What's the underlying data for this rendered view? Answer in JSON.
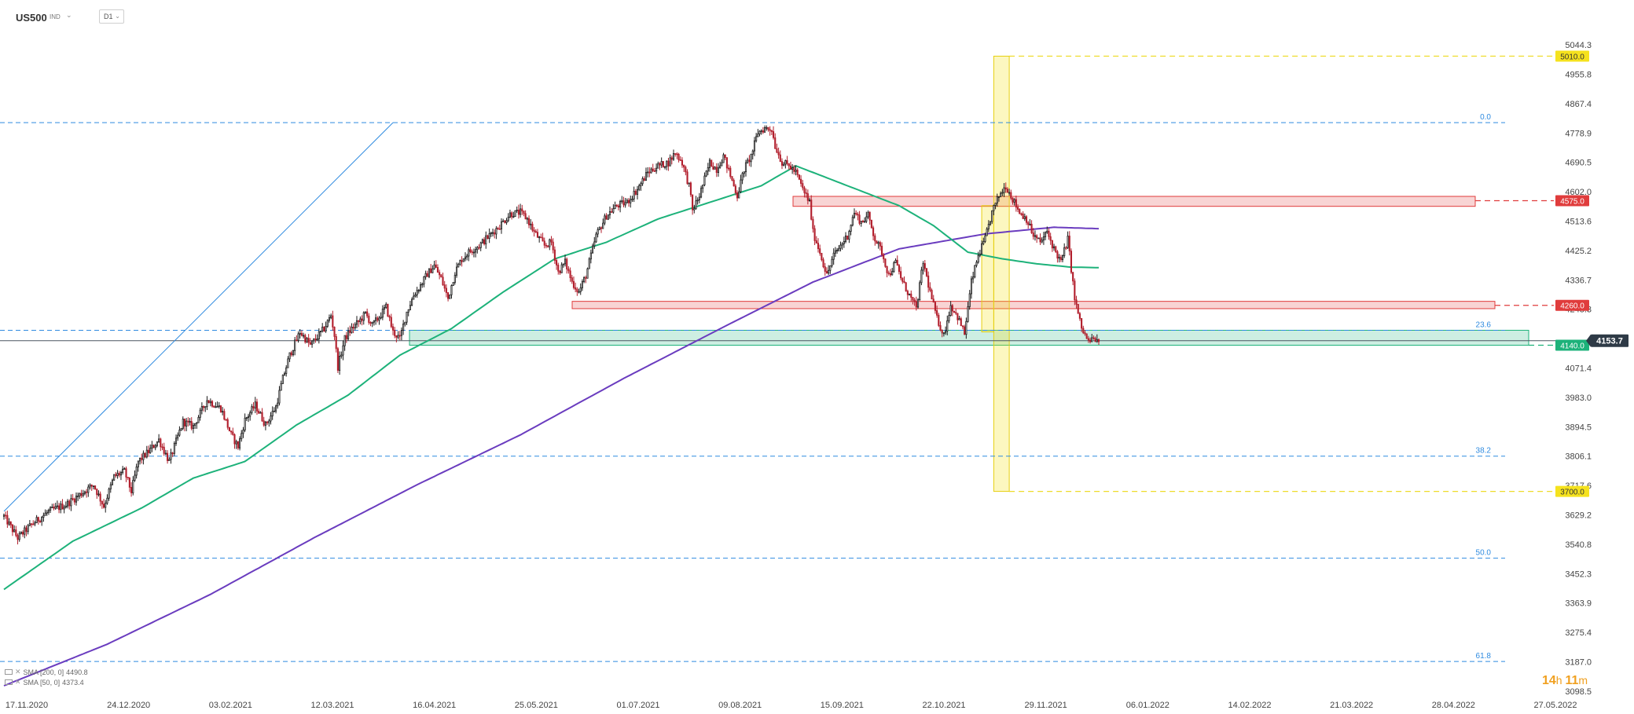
{
  "header": {
    "symbol": "US500",
    "instrument_type": "IND",
    "timeframe": "D1"
  },
  "timer": {
    "hours": "14",
    "h_unit": "h",
    "minutes": "11",
    "m_unit": "m"
  },
  "indicators": [
    {
      "label": "SMA [200, 0]",
      "value": "4490.8",
      "color": "#6a3cbf"
    },
    {
      "label": "SMA [50, 0]",
      "value": "4373.4",
      "color": "#1db27a"
    }
  ],
  "chart_data": {
    "type": "candlestick",
    "symbol": "US500",
    "timeframe": "D1",
    "y_ticks": [
      5044.3,
      4955.8,
      4867.4,
      4778.9,
      4690.5,
      4602.0,
      4513.6,
      4425.2,
      4336.7,
      4248.3,
      4071.4,
      3983.0,
      3894.5,
      3806.1,
      3717.6,
      3629.2,
      3540.8,
      3452.3,
      3363.9,
      3275.4,
      3187.0,
      3098.5
    ],
    "ylim": [
      3098.5,
      5044.3
    ],
    "x_ticks": [
      "17.11.2020",
      "24.12.2020",
      "03.02.2021",
      "12.03.2021",
      "16.04.2021",
      "25.05.2021",
      "01.07.2021",
      "09.08.2021",
      "15.09.2021",
      "22.10.2021",
      "29.11.2021",
      "06.01.2022",
      "14.02.2022",
      "21.03.2022",
      "28.04.2022",
      "27.05.2022"
    ],
    "current_price": "4153.7",
    "price_levels": [
      {
        "label": "5010.0",
        "value": 5010.0,
        "color": "#f5e21e",
        "text_color": "#333333"
      },
      {
        "label": "4575.0",
        "value": 4575.0,
        "color": "#e03c3c",
        "text_color": "#ffffff"
      },
      {
        "label": "4260.0",
        "value": 4260.0,
        "color": "#e03c3c",
        "text_color": "#ffffff"
      },
      {
        "label": "4140.0",
        "value": 4140.0,
        "color": "#1db27a",
        "text_color": "#ffffff"
      },
      {
        "label": "3700.0",
        "value": 3700.0,
        "color": "#f5e21e",
        "text_color": "#333333"
      }
    ],
    "fibonacci_levels": [
      {
        "label": "0.0",
        "value": 4810.0
      },
      {
        "label": "23.6",
        "value": 4185.0
      },
      {
        "label": "38.2",
        "value": 3806.1
      },
      {
        "label": "50.0",
        "value": 3499.0
      },
      {
        "label": "61.8",
        "value": 3188.0
      }
    ],
    "zones": [
      {
        "name": "resistance-zone-4575",
        "x_start": "08.2021",
        "x_end": "04.2022",
        "y_low": 4558,
        "y_high": 4588,
        "color": "#e03c3c"
      },
      {
        "name": "resistance-zone-4260",
        "x_start": "06.2021",
        "x_end": "05.2022",
        "y_low": 4250,
        "y_high": 4272,
        "color": "#e03c3c"
      },
      {
        "name": "support-zone-4140",
        "x_start": "04.2021",
        "x_end": "05.2022",
        "y_low": 4140,
        "y_high": 4185,
        "color": "#1db27a"
      }
    ],
    "price_path": [
      [
        0,
        3625
      ],
      [
        8,
        3560
      ],
      [
        16,
        3600
      ],
      [
        26,
        3640
      ],
      [
        36,
        3660
      ],
      [
        44,
        3690
      ],
      [
        52,
        3720
      ],
      [
        58,
        3655
      ],
      [
        64,
        3745
      ],
      [
        70,
        3760
      ],
      [
        74,
        3700
      ],
      [
        78,
        3790
      ],
      [
        84,
        3820
      ],
      [
        90,
        3855
      ],
      [
        96,
        3790
      ],
      [
        104,
        3910
      ],
      [
        110,
        3895
      ],
      [
        118,
        3975
      ],
      [
        126,
        3950
      ],
      [
        132,
        3870
      ],
      [
        136,
        3835
      ],
      [
        140,
        3915
      ],
      [
        146,
        3960
      ],
      [
        152,
        3900
      ],
      [
        158,
        3955
      ],
      [
        162,
        4040
      ],
      [
        166,
        4110
      ],
      [
        172,
        4180
      ],
      [
        178,
        4140
      ],
      [
        182,
        4165
      ],
      [
        186,
        4190
      ],
      [
        190,
        4230
      ],
      [
        192,
        4170
      ],
      [
        194,
        4075
      ],
      [
        198,
        4160
      ],
      [
        202,
        4190
      ],
      [
        206,
        4210
      ],
      [
        210,
        4235
      ],
      [
        214,
        4200
      ],
      [
        218,
        4225
      ],
      [
        222,
        4255
      ],
      [
        226,
        4180
      ],
      [
        230,
        4160
      ],
      [
        234,
        4240
      ],
      [
        238,
        4290
      ],
      [
        242,
        4320
      ],
      [
        246,
        4355
      ],
      [
        250,
        4380
      ],
      [
        254,
        4340
      ],
      [
        258,
        4280
      ],
      [
        262,
        4360
      ],
      [
        266,
        4400
      ],
      [
        270,
        4420
      ],
      [
        276,
        4440
      ],
      [
        282,
        4470
      ],
      [
        288,
        4500
      ],
      [
        294,
        4535
      ],
      [
        300,
        4540
      ],
      [
        304,
        4520
      ],
      [
        308,
        4480
      ],
      [
        314,
        4440
      ],
      [
        318,
        4450
      ],
      [
        322,
        4360
      ],
      [
        326,
        4390
      ],
      [
        330,
        4330
      ],
      [
        334,
        4300
      ],
      [
        338,
        4350
      ],
      [
        344,
        4470
      ],
      [
        350,
        4530
      ],
      [
        356,
        4560
      ],
      [
        362,
        4570
      ],
      [
        368,
        4610
      ],
      [
        374,
        4660
      ],
      [
        380,
        4680
      ],
      [
        386,
        4690
      ],
      [
        390,
        4720
      ],
      [
        394,
        4690
      ],
      [
        398,
        4620
      ],
      [
        400,
        4545
      ],
      [
        404,
        4590
      ],
      [
        410,
        4690
      ],
      [
        414,
        4670
      ],
      [
        418,
        4710
      ],
      [
        422,
        4650
      ],
      [
        426,
        4590
      ],
      [
        430,
        4670
      ],
      [
        434,
        4710
      ],
      [
        438,
        4780
      ],
      [
        442,
        4793
      ],
      [
        446,
        4790
      ],
      [
        448,
        4740
      ],
      [
        452,
        4690
      ],
      [
        456,
        4680
      ],
      [
        460,
        4660
      ],
      [
        464,
        4610
      ],
      [
        468,
        4570
      ],
      [
        470,
        4480
      ],
      [
        474,
        4420
      ],
      [
        478,
        4350
      ],
      [
        482,
        4410
      ],
      [
        486,
        4440
      ],
      [
        490,
        4470
      ],
      [
        494,
        4540
      ],
      [
        498,
        4510
      ],
      [
        502,
        4530
      ],
      [
        506,
        4460
      ],
      [
        510,
        4420
      ],
      [
        514,
        4350
      ],
      [
        518,
        4390
      ],
      [
        522,
        4330
      ],
      [
        526,
        4290
      ],
      [
        530,
        4250
      ],
      [
        534,
        4390
      ],
      [
        538,
        4300
      ],
      [
        542,
        4220
      ],
      [
        546,
        4170
      ],
      [
        550,
        4260
      ],
      [
        554,
        4225
      ],
      [
        558,
        4175
      ],
      [
        562,
        4330
      ],
      [
        566,
        4410
      ],
      [
        570,
        4460
      ],
      [
        574,
        4540
      ],
      [
        578,
        4590
      ],
      [
        582,
        4620
      ],
      [
        586,
        4580
      ],
      [
        590,
        4540
      ],
      [
        594,
        4520
      ],
      [
        598,
        4470
      ],
      [
        602,
        4450
      ],
      [
        606,
        4480
      ],
      [
        610,
        4430
      ],
      [
        614,
        4390
      ],
      [
        618,
        4460
      ],
      [
        622,
        4280
      ],
      [
        626,
        4190
      ],
      [
        630,
        4150
      ],
      [
        634,
        4160
      ],
      [
        636,
        4140
      ]
    ],
    "sma50_path": [
      [
        0,
        3405
      ],
      [
        40,
        3550
      ],
      [
        80,
        3650
      ],
      [
        110,
        3740
      ],
      [
        140,
        3790
      ],
      [
        170,
        3900
      ],
      [
        200,
        3990
      ],
      [
        230,
        4110
      ],
      [
        260,
        4190
      ],
      [
        290,
        4300
      ],
      [
        320,
        4400
      ],
      [
        350,
        4450
      ],
      [
        380,
        4520
      ],
      [
        410,
        4570
      ],
      [
        440,
        4620
      ],
      [
        460,
        4680
      ],
      [
        480,
        4640
      ],
      [
        500,
        4600
      ],
      [
        520,
        4560
      ],
      [
        540,
        4500
      ],
      [
        560,
        4420
      ],
      [
        580,
        4400
      ],
      [
        600,
        4385
      ],
      [
        620,
        4375
      ],
      [
        636,
        4373.4
      ]
    ],
    "sma200_path": [
      [
        0,
        3115
      ],
      [
        60,
        3240
      ],
      [
        120,
        3390
      ],
      [
        180,
        3560
      ],
      [
        240,
        3720
      ],
      [
        300,
        3870
      ],
      [
        360,
        4040
      ],
      [
        420,
        4200
      ],
      [
        470,
        4330
      ],
      [
        520,
        4430
      ],
      [
        570,
        4475
      ],
      [
        610,
        4495
      ],
      [
        636,
        4490.8
      ]
    ],
    "trendline": {
      "from": [
        0,
        3640
      ],
      "to": [
        226,
        4810
      ]
    },
    "vertical_bands": [
      {
        "name": "target-band",
        "x_start": 575,
        "x_end": 584,
        "y_low": 3700,
        "y_high": 5010,
        "color": "#f5e21e"
      },
      {
        "name": "highlight-band",
        "x_start": 568,
        "x_end": 575,
        "y_low": 4180,
        "y_high": 4560,
        "color": "#f5e21e"
      }
    ]
  }
}
